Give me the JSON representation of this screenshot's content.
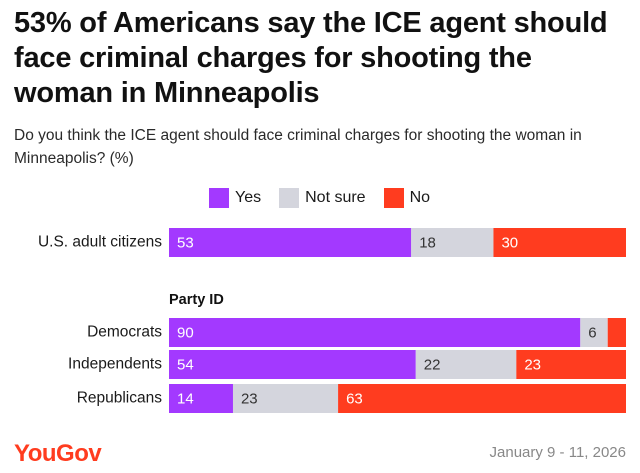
{
  "title": "53% of Americans say the ICE agent should face criminal charges for shooting the woman in Minneapolis",
  "subtitle": "Do you think the ICE agent should face criminal charges for shooting the woman in Minneapolis? (%)",
  "legend": [
    {
      "name": "Yes",
      "color": "#a339ff"
    },
    {
      "name": "Not sure",
      "color": "#d4d5dd"
    },
    {
      "name": "No",
      "color": "#ff3c1f"
    }
  ],
  "group_label": "Party ID",
  "brand": "YouGov",
  "date": "January 9 - 11, 2026",
  "chart_data": {
    "type": "bar",
    "orientation": "horizontal",
    "stacked": true,
    "title": "53% of Americans say the ICE agent should face criminal charges for shooting the woman in Minneapolis",
    "subtitle": "Do you think the ICE agent should face criminal charges for shooting the woman in Minneapolis? (%)",
    "categories": [
      "U.S. adult citizens",
      "Democrats",
      "Independents",
      "Republicans"
    ],
    "series": [
      {
        "name": "Yes",
        "color": "#a339ff",
        "values": [
          53,
          90,
          54,
          14
        ]
      },
      {
        "name": "Not sure",
        "color": "#d4d5dd",
        "values": [
          18,
          6,
          22,
          23
        ]
      },
      {
        "name": "No",
        "color": "#ff3c1f",
        "values": [
          30,
          4,
          23,
          63
        ]
      }
    ],
    "labels": [
      [
        "53",
        "90",
        "54",
        "14"
      ],
      [
        "18",
        "6",
        "22",
        "23"
      ],
      [
        "30",
        "",
        "23",
        "63"
      ]
    ],
    "xlim": [
      0,
      100
    ],
    "unit": "%"
  }
}
